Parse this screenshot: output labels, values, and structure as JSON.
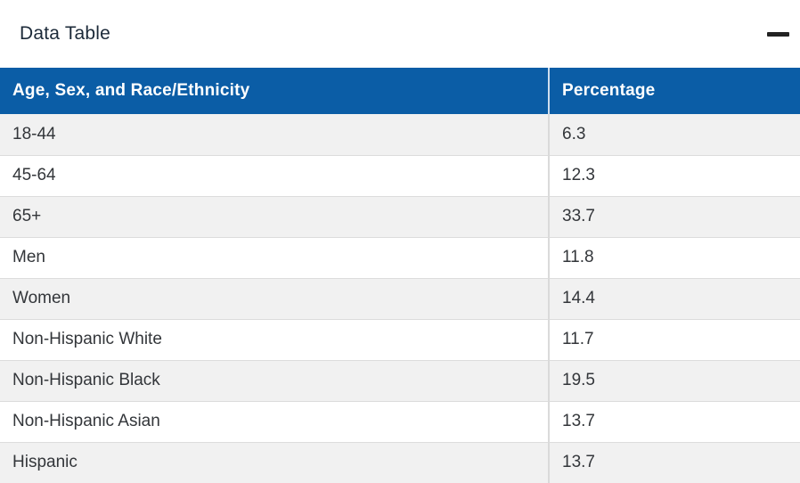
{
  "panel": {
    "title": "Data Table",
    "collapse_tooltip": "Collapse"
  },
  "colors": {
    "header_bg": "#0B5DA6",
    "header_text": "#FFFFFF",
    "row_alt_bg": "#F1F1F1",
    "row_bg": "#FFFFFF",
    "body_text": "#33363A",
    "title_text": "#1C2A39",
    "header_divider": "#CFDEEE",
    "body_divider": "#DADADA",
    "minus_icon": "#232323"
  },
  "chart_data": {
    "type": "table",
    "title": "Data Table",
    "columns": [
      "Age, Sex, and Race/Ethnicity",
      "Percentage"
    ],
    "rows": [
      {
        "label": "18-44",
        "value": "6.3"
      },
      {
        "label": "45-64",
        "value": "12.3"
      },
      {
        "label": "65+",
        "value": "33.7"
      },
      {
        "label": "Men",
        "value": "11.8"
      },
      {
        "label": "Women",
        "value": "14.4"
      },
      {
        "label": "Non-Hispanic White",
        "value": "11.7"
      },
      {
        "label": "Non-Hispanic Black",
        "value": "19.5"
      },
      {
        "label": "Non-Hispanic Asian",
        "value": "13.7"
      },
      {
        "label": "Hispanic",
        "value": "13.7"
      }
    ],
    "layout_hints": {
      "first_row_shaded": true,
      "alternating_rows": true,
      "last_row_clipped_at_bottom": true
    }
  }
}
